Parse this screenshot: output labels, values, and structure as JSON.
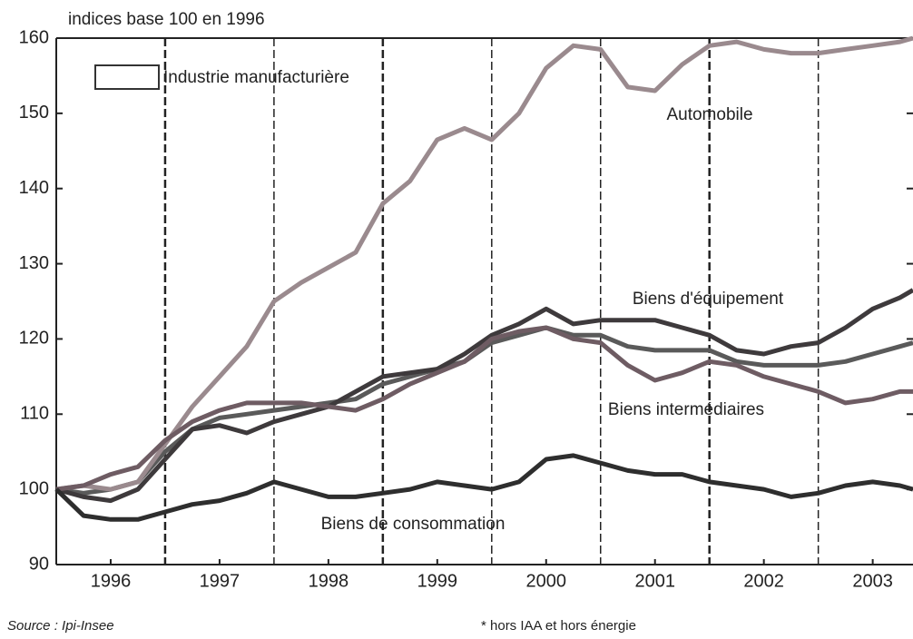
{
  "chart_data": {
    "type": "line",
    "title": "indices base 100 en 1996",
    "source": "Source : Ipi-Insee",
    "note": "* hors IAA et hors énergie",
    "legend": "upper left",
    "x": [
      1996.0,
      1996.25,
      1996.5,
      1996.75,
      1997.0,
      1997.25,
      1997.5,
      1997.75,
      1998.0,
      1998.25,
      1998.5,
      1998.75,
      1999.0,
      1999.25,
      1999.5,
      1999.75,
      2000.0,
      2000.25,
      2000.5,
      2000.75,
      2001.0,
      2001.25,
      2001.5,
      2001.75,
      2002.0,
      2002.25,
      2002.5,
      2002.75,
      2003.0,
      2003.25,
      2003.5,
      2003.75,
      2003.87
    ],
    "series": [
      {
        "name": "Industrie manufacturière",
        "color": "#5a5a5a",
        "legend": true,
        "values": [
          100,
          99.5,
          100,
          101,
          105,
          108,
          109.5,
          110,
          110.5,
          111,
          111.5,
          112,
          114,
          115,
          116,
          117,
          119.5,
          120.5,
          121.5,
          120.5,
          120.5,
          119,
          118.5,
          118.5,
          118.5,
          117,
          116.5,
          116.5,
          116.5,
          117,
          118,
          119,
          119.5
        ]
      },
      {
        "name": "Automobile",
        "color": "#9a8a8e",
        "values": [
          100,
          100.5,
          100,
          101,
          106,
          111,
          115,
          119,
          125,
          127.5,
          129.5,
          131.5,
          138,
          141,
          146.5,
          148,
          146.5,
          150,
          156,
          159,
          158.5,
          153.5,
          153,
          156.5,
          159,
          159.5,
          158.5,
          158,
          158,
          158.5,
          159,
          159.5,
          160
        ]
      },
      {
        "name": "Biens d'équipement",
        "color": "#3e3a3c",
        "values": [
          100,
          99,
          98.5,
          100,
          104,
          108,
          108.5,
          107.5,
          109,
          110,
          111,
          113,
          115,
          115.5,
          116,
          118,
          120.5,
          122,
          124,
          122,
          122.5,
          122.5,
          122.5,
          121.5,
          120.5,
          118.5,
          118,
          119,
          119.5,
          121.5,
          124,
          125.5,
          126.5
        ]
      },
      {
        "name": "Biens intermédiaires",
        "color": "#6e5c63",
        "values": [
          100,
          100.5,
          102,
          103,
          106.5,
          109,
          110.5,
          111.5,
          111.5,
          111.5,
          111,
          110.5,
          112,
          114,
          115.5,
          117,
          120,
          121,
          121.5,
          120,
          119.5,
          116.5,
          114.5,
          115.5,
          117,
          116.5,
          115,
          114,
          113,
          111.5,
          112,
          113,
          113
        ]
      },
      {
        "name": "Biens de consommation",
        "color": "#2e2e2e",
        "values": [
          100,
          96.5,
          96,
          96,
          97,
          98,
          98.5,
          99.5,
          101,
          100,
          99,
          99,
          99.5,
          100,
          101,
          100.5,
          100,
          101,
          104,
          104.5,
          103.5,
          102.5,
          102,
          102,
          101,
          100.5,
          100,
          99,
          99.5,
          100.5,
          101,
          100.5,
          100
        ]
      }
    ],
    "xlim": [
      1996,
      2003.87
    ],
    "xticks": [
      {
        "value": 1996.5,
        "label": "1996"
      },
      {
        "value": 1997.5,
        "label": "1997"
      },
      {
        "value": 1998.5,
        "label": "1998"
      },
      {
        "value": 1999.5,
        "label": "1999"
      },
      {
        "value": 2000.5,
        "label": "2000"
      },
      {
        "value": 2001.5,
        "label": "2001"
      },
      {
        "value": 2002.5,
        "label": "2002"
      },
      {
        "value": 2003.5,
        "label": "2003"
      }
    ],
    "vlines": [
      1997,
      1998,
      1999,
      2000,
      2001,
      2002,
      2003
    ],
    "ylim": [
      90,
      160
    ],
    "yticks": [
      90,
      100,
      110,
      120,
      130,
      140,
      150,
      160
    ]
  }
}
